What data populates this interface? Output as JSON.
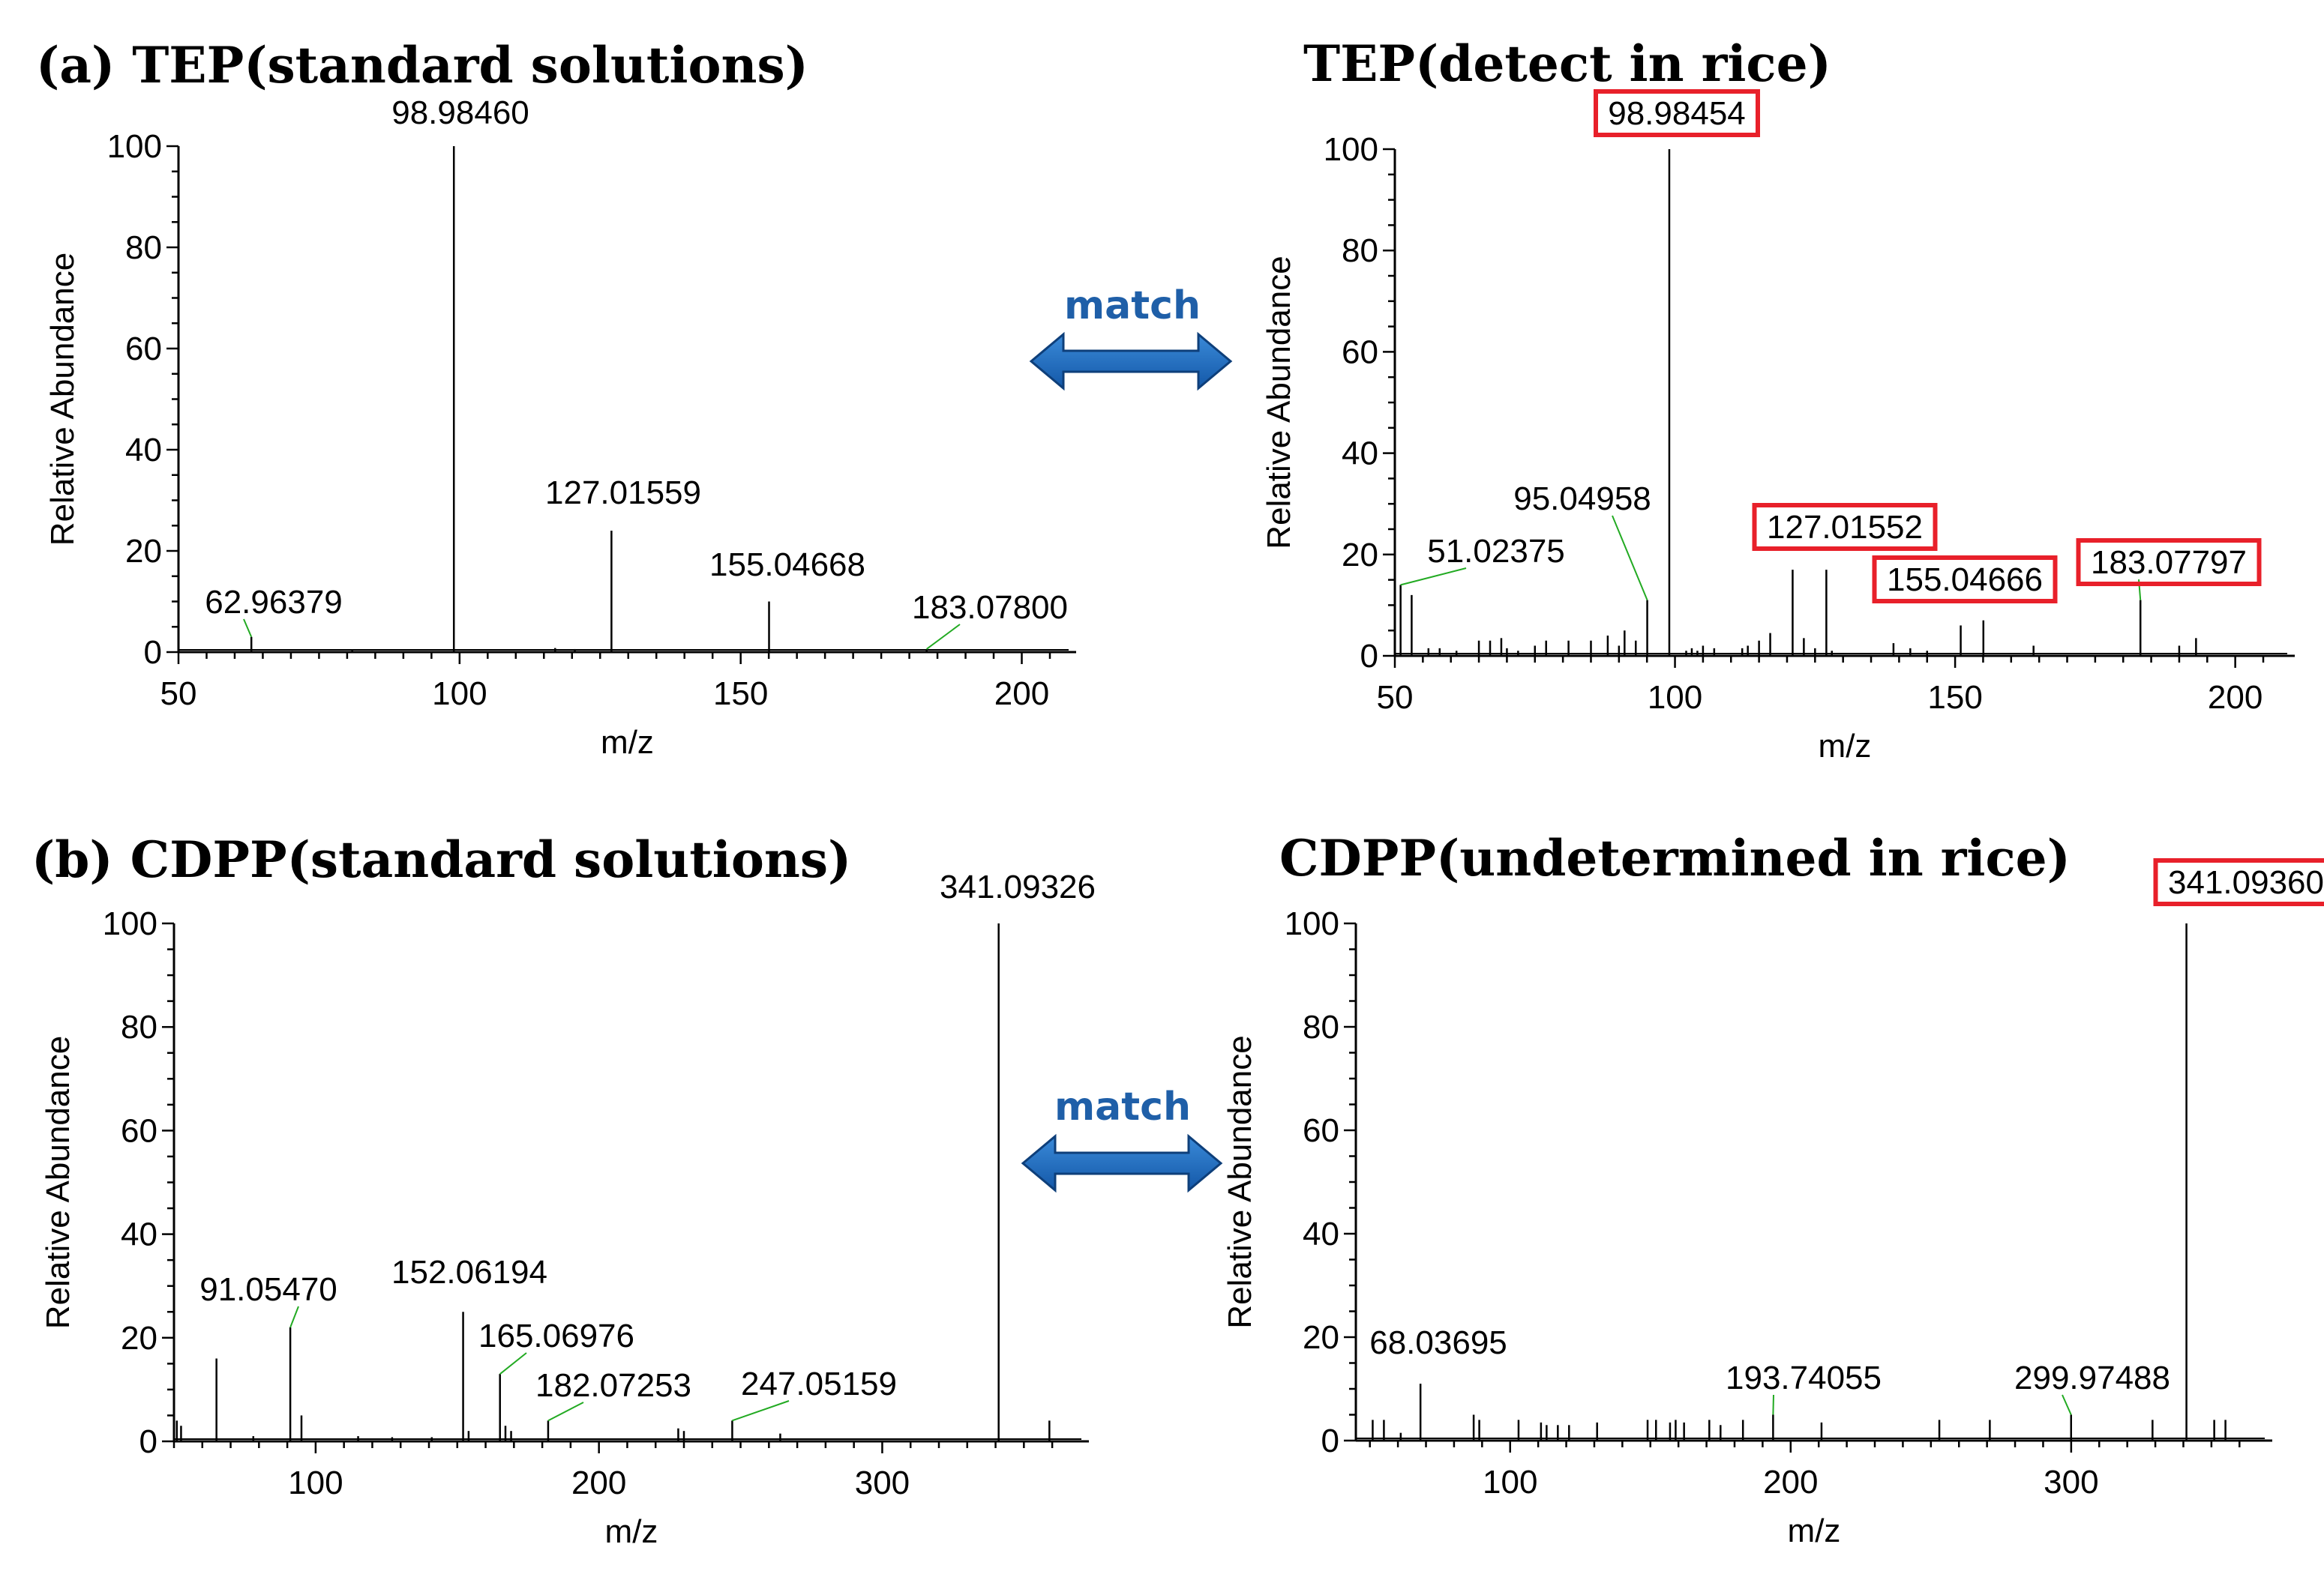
{
  "match_label": "match",
  "arrow_color": "#1f6fc4",
  "highlight_color": "#e8202a",
  "leader_color": "#22aa22",
  "chart_data": [
    {
      "type": "bar",
      "title": "(a) TEP(standard solutions)",
      "xlabel": "m/z",
      "ylabel": "Relative Abundance",
      "xlim": [
        50,
        205
      ],
      "ylim": [
        0,
        100
      ],
      "xticks": [
        50,
        100,
        150,
        200
      ],
      "yticks": [
        0,
        20,
        40,
        60,
        80,
        100
      ],
      "peaks": [
        {
          "mz": 62.96379,
          "abundance": 3,
          "label": "62.96379"
        },
        {
          "mz": 80.9,
          "abundance": 0.5
        },
        {
          "mz": 98.9846,
          "abundance": 100,
          "label": "98.98460"
        },
        {
          "mz": 117.0,
          "abundance": 0.8
        },
        {
          "mz": 120.5,
          "abundance": 0.6
        },
        {
          "mz": 127.01559,
          "abundance": 24,
          "label": "127.01559"
        },
        {
          "mz": 155.04668,
          "abundance": 10,
          "label": "155.04668"
        },
        {
          "mz": 183.078,
          "abundance": 0.6,
          "label": "183.07800"
        }
      ]
    },
    {
      "type": "bar",
      "title": "TEP(detect in rice)",
      "xlabel": "m/z",
      "ylabel": "Relative Abundance",
      "xlim": [
        50,
        205
      ],
      "ylim": [
        0,
        100
      ],
      "xticks": [
        50,
        100,
        150,
        200
      ],
      "yticks": [
        0,
        20,
        40,
        60,
        80,
        100
      ],
      "peaks": [
        {
          "mz": 51.02375,
          "abundance": 14,
          "label": "51.02375"
        },
        {
          "mz": 53.0,
          "abundance": 12
        },
        {
          "mz": 56.0,
          "abundance": 1.5
        },
        {
          "mz": 58.0,
          "abundance": 1.5
        },
        {
          "mz": 61.0,
          "abundance": 1
        },
        {
          "mz": 65.0,
          "abundance": 3
        },
        {
          "mz": 67.0,
          "abundance": 3
        },
        {
          "mz": 69.0,
          "abundance": 3.5
        },
        {
          "mz": 70.0,
          "abundance": 1.5
        },
        {
          "mz": 72.0,
          "abundance": 1
        },
        {
          "mz": 75.0,
          "abundance": 2
        },
        {
          "mz": 77.0,
          "abundance": 3
        },
        {
          "mz": 81.0,
          "abundance": 3
        },
        {
          "mz": 85.0,
          "abundance": 3
        },
        {
          "mz": 88.0,
          "abundance": 4
        },
        {
          "mz": 90.0,
          "abundance": 2
        },
        {
          "mz": 91.0,
          "abundance": 5
        },
        {
          "mz": 93.0,
          "abundance": 3
        },
        {
          "mz": 95.04958,
          "abundance": 11,
          "label": "95.04958"
        },
        {
          "mz": 98.98454,
          "abundance": 100,
          "label": "98.98454",
          "highlight": true
        },
        {
          "mz": 102.0,
          "abundance": 1
        },
        {
          "mz": 103.0,
          "abundance": 1.5
        },
        {
          "mz": 104.0,
          "abundance": 1
        },
        {
          "mz": 105.0,
          "abundance": 2
        },
        {
          "mz": 107.0,
          "abundance": 1.5
        },
        {
          "mz": 112.0,
          "abundance": 1.5
        },
        {
          "mz": 113.0,
          "abundance": 2
        },
        {
          "mz": 115.0,
          "abundance": 3
        },
        {
          "mz": 117.0,
          "abundance": 4.5
        },
        {
          "mz": 121.0,
          "abundance": 17
        },
        {
          "mz": 123.0,
          "abundance": 3.5
        },
        {
          "mz": 125.0,
          "abundance": 1.5
        },
        {
          "mz": 127.01552,
          "abundance": 17,
          "label": "127.01552",
          "highlight": true
        },
        {
          "mz": 128.0,
          "abundance": 1
        },
        {
          "mz": 139.0,
          "abundance": 2.5
        },
        {
          "mz": 142.0,
          "abundance": 1.5
        },
        {
          "mz": 145.0,
          "abundance": 1
        },
        {
          "mz": 151.0,
          "abundance": 6
        },
        {
          "mz": 155.04666,
          "abundance": 7,
          "label": "155.04666",
          "highlight": true
        },
        {
          "mz": 164.0,
          "abundance": 2
        },
        {
          "mz": 183.07797,
          "abundance": 11,
          "label": "183.07797",
          "highlight": true
        },
        {
          "mz": 190.0,
          "abundance": 2
        },
        {
          "mz": 193.0,
          "abundance": 3.5
        }
      ]
    },
    {
      "type": "bar",
      "title": "(b) CDPP(standard solutions)",
      "xlabel": "m/z",
      "ylabel": "Relative Abundance",
      "xlim": [
        50,
        365
      ],
      "ylim": [
        0,
        100
      ],
      "xticks": [
        100,
        200,
        300
      ],
      "yticks": [
        0,
        20,
        40,
        60,
        80,
        100
      ],
      "peaks": [
        {
          "mz": 51.0,
          "abundance": 4
        },
        {
          "mz": 52.5,
          "abundance": 3
        },
        {
          "mz": 65.0,
          "abundance": 16
        },
        {
          "mz": 78.0,
          "abundance": 1
        },
        {
          "mz": 91.0547,
          "abundance": 22,
          "label": "91.05470"
        },
        {
          "mz": 95.0,
          "abundance": 5
        },
        {
          "mz": 115.0,
          "abundance": 1
        },
        {
          "mz": 127.0,
          "abundance": 0.8
        },
        {
          "mz": 141.0,
          "abundance": 0.8
        },
        {
          "mz": 152.06194,
          "abundance": 25,
          "label": "152.06194"
        },
        {
          "mz": 154.0,
          "abundance": 2
        },
        {
          "mz": 165.06976,
          "abundance": 13,
          "label": "165.06976"
        },
        {
          "mz": 167.0,
          "abundance": 3
        },
        {
          "mz": 169.0,
          "abundance": 2
        },
        {
          "mz": 182.07253,
          "abundance": 4,
          "label": "182.07253"
        },
        {
          "mz": 228.0,
          "abundance": 2.5
        },
        {
          "mz": 230.0,
          "abundance": 2
        },
        {
          "mz": 247.05159,
          "abundance": 4,
          "label": "247.05159"
        },
        {
          "mz": 264.0,
          "abundance": 1.5
        },
        {
          "mz": 341.09326,
          "abundance": 100,
          "label": "341.09326"
        },
        {
          "mz": 359.0,
          "abundance": 4
        }
      ]
    },
    {
      "type": "bar",
      "title": "CDPP(undetermined in rice)",
      "xlabel": "m/z",
      "ylabel": "Relative Abundance",
      "xlim": [
        45,
        365
      ],
      "ylim": [
        0,
        100
      ],
      "xticks": [
        100,
        200,
        300
      ],
      "yticks": [
        0,
        20,
        40,
        60,
        80,
        100
      ],
      "peaks": [
        {
          "mz": 51.0,
          "abundance": 4
        },
        {
          "mz": 55.0,
          "abundance": 4
        },
        {
          "mz": 61.0,
          "abundance": 1.5
        },
        {
          "mz": 68.03695,
          "abundance": 11,
          "label": "68.03695"
        },
        {
          "mz": 87.0,
          "abundance": 5
        },
        {
          "mz": 89.0,
          "abundance": 4
        },
        {
          "mz": 103.0,
          "abundance": 4
        },
        {
          "mz": 111.0,
          "abundance": 3.5
        },
        {
          "mz": 113.0,
          "abundance": 3
        },
        {
          "mz": 117.0,
          "abundance": 3
        },
        {
          "mz": 121.0,
          "abundance": 3
        },
        {
          "mz": 131.0,
          "abundance": 3.5
        },
        {
          "mz": 149.0,
          "abundance": 4
        },
        {
          "mz": 152.0,
          "abundance": 4
        },
        {
          "mz": 157.0,
          "abundance": 3.5
        },
        {
          "mz": 159.0,
          "abundance": 4
        },
        {
          "mz": 162.0,
          "abundance": 3.5
        },
        {
          "mz": 171.0,
          "abundance": 4
        },
        {
          "mz": 175.0,
          "abundance": 3
        },
        {
          "mz": 183.0,
          "abundance": 4
        },
        {
          "mz": 193.74055,
          "abundance": 5,
          "label": "193.74055"
        },
        {
          "mz": 211.0,
          "abundance": 3.5
        },
        {
          "mz": 253.0,
          "abundance": 4
        },
        {
          "mz": 271.0,
          "abundance": 4
        },
        {
          "mz": 299.97488,
          "abundance": 5,
          "label": "299.97488"
        },
        {
          "mz": 329.0,
          "abundance": 4
        },
        {
          "mz": 341.0936,
          "abundance": 100,
          "label": "341.09360",
          "highlight": true
        },
        {
          "mz": 351.0,
          "abundance": 4
        },
        {
          "mz": 355.0,
          "abundance": 4
        }
      ]
    }
  ]
}
